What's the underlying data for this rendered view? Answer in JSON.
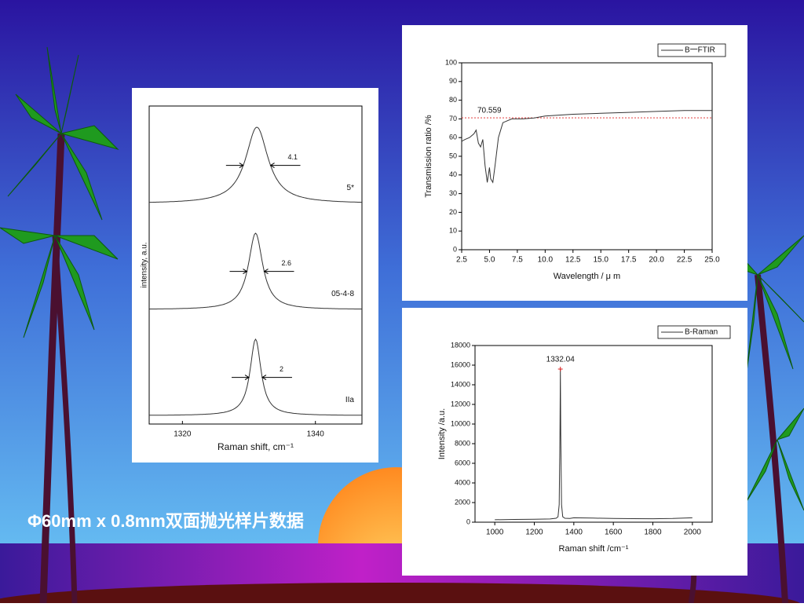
{
  "caption": "Φ60mm x 0.8mm双面抛光样片数据",
  "chart_data": [
    {
      "type": "line",
      "xlabel": "Wavelength / μ m",
      "ylabel": "Transmission ratio /%",
      "x": [
        2.5,
        2.8,
        3.2,
        3.6,
        3.8,
        4.0,
        4.2,
        4.4,
        4.6,
        4.8,
        5.0,
        5.1,
        5.3,
        5.5,
        5.8,
        6.2,
        7.0,
        8.0,
        9.0,
        10.0,
        12.5,
        15.0,
        17.5,
        20.0,
        22.5,
        25.0
      ],
      "series": [
        {
          "name": "B一FTIR",
          "color": "#333333",
          "values": [
            58,
            59,
            60,
            62,
            64,
            57,
            55,
            59,
            45,
            36,
            44,
            38,
            36,
            45,
            60,
            68,
            70,
            70,
            70.5,
            71.5,
            72.5,
            73,
            73.5,
            74,
            74.5,
            74.5
          ]
        }
      ],
      "hline": 70.559,
      "hline_color": "#dd2222",
      "xlim": [
        2.5,
        25
      ],
      "xticks": [
        2.5,
        {
          "value": 5,
          "label": "5.0"
        },
        7.5,
        {
          "value": 10,
          "label": "10.0"
        },
        12.5,
        {
          "value": 15,
          "label": "15.0"
        },
        17.5,
        {
          "value": 20,
          "label": "20.0"
        },
        22.5,
        {
          "value": 25,
          "label": "25.0"
        }
      ],
      "ylim": [
        0,
        100
      ],
      "yticks": [
        0,
        10,
        20,
        30,
        40,
        50,
        60,
        70,
        80,
        90,
        100
      ],
      "legend": "top-right"
    },
    {
      "type": "line",
      "xlabel": "Raman shift /cm⁻¹",
      "ylabel": "Intensity /a.u.",
      "x": [
        1000,
        1100,
        1200,
        1280,
        1310,
        1320,
        1326,
        1330,
        1332.04,
        1334,
        1338,
        1344,
        1355,
        1380,
        1400,
        1500,
        1600,
        1700,
        1800,
        1900,
        2000
      ],
      "series": [
        {
          "name": "B-Raman",
          "color": "#333333",
          "values": [
            250,
            280,
            300,
            330,
            400,
            550,
            1800,
            9000,
            15600,
            9000,
            1800,
            550,
            400,
            380,
            450,
            420,
            380,
            360,
            350,
            380,
            450
          ]
        }
      ],
      "peak_label": true,
      "peak_color": "#dd2222",
      "xlim": [
        900,
        2100
      ],
      "xticks": [
        1000,
        1200,
        1400,
        1600,
        1800,
        2000
      ],
      "ylim": [
        0,
        18000
      ],
      "yticks": [
        0,
        2000,
        4000,
        6000,
        8000,
        10000,
        12000,
        14000,
        16000,
        18000
      ],
      "legend": "top-right"
    },
    {
      "type": "ridgeline",
      "xlabel": "Raman shift, cm⁻¹",
      "ylabel": "intensity, a.u.",
      "series": [
        {
          "name": "5*",
          "center": 1331.2,
          "fwhm": 4.1,
          "color": "#333333"
        },
        {
          "name": "05-4-8",
          "center": 1331.0,
          "fwhm": 2.6,
          "color": "#333333"
        },
        {
          "name": "IIa",
          "center": 1331.0,
          "fwhm": 2.0,
          "color": "#333333"
        }
      ],
      "xlim": [
        1315,
        1347
      ],
      "xticks": [
        1320,
        1340
      ]
    }
  ]
}
